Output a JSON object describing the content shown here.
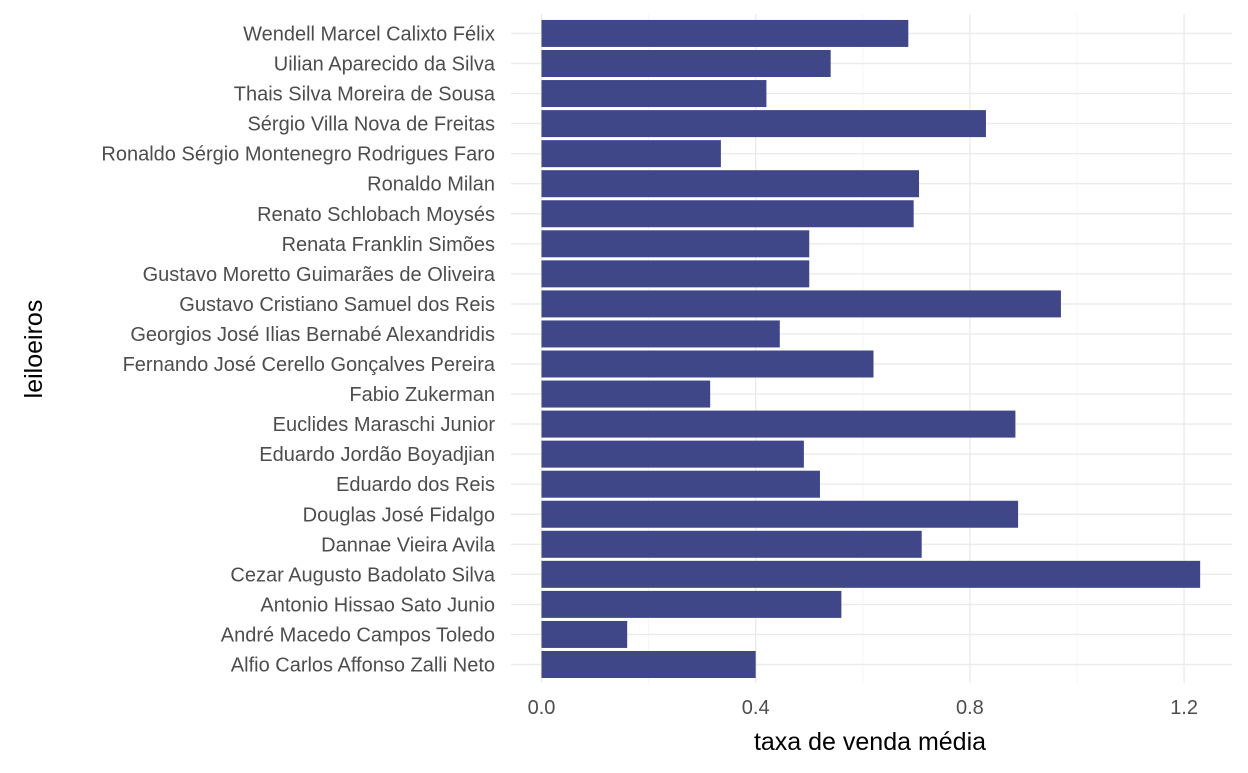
{
  "chart_data": {
    "type": "bar",
    "orientation": "horizontal",
    "xlabel": "taxa de venda média",
    "ylabel": "leiloeiros",
    "xlim": [
      -0.06,
      1.29
    ],
    "xticks": [
      0.0,
      0.4,
      0.8,
      1.2
    ],
    "xtick_labels": [
      "0.0",
      "0.4",
      "0.8",
      "1.2"
    ],
    "grid": true,
    "bar_color": "#404788",
    "categories": [
      "Alfio Carlos Affonso Zalli Neto",
      "André Macedo Campos Toledo",
      "Antonio Hissao Sato Junio",
      "Cezar Augusto Badolato Silva",
      "Dannae Vieira Avila",
      "Douglas José Fidalgo",
      "Eduardo dos Reis",
      "Eduardo Jordão Boyadjian",
      "Euclides Maraschi Junior",
      "Fabio Zukerman",
      "Fernando José Cerello Gonçalves Pereira",
      "Georgios José Ilias Bernabé Alexandridis",
      "Gustavo Cristiano Samuel dos Reis",
      "Gustavo Moretto Guimarães de Oliveira",
      "Renata Franklin Simões",
      "Renato Schlobach Moysés",
      "Ronaldo Milan",
      "Ronaldo Sérgio Montenegro Rodrigues Faro",
      "Sérgio Villa Nova de Freitas",
      "Thais Silva Moreira de Sousa",
      "Uilian Aparecido da Silva",
      "Wendell Marcel Calixto Félix"
    ],
    "values": [
      0.4,
      0.16,
      0.56,
      1.23,
      0.71,
      0.89,
      0.52,
      0.49,
      0.885,
      0.315,
      0.62,
      0.445,
      0.97,
      0.5,
      0.5,
      0.695,
      0.705,
      0.335,
      0.83,
      0.42,
      0.54,
      0.685
    ]
  }
}
